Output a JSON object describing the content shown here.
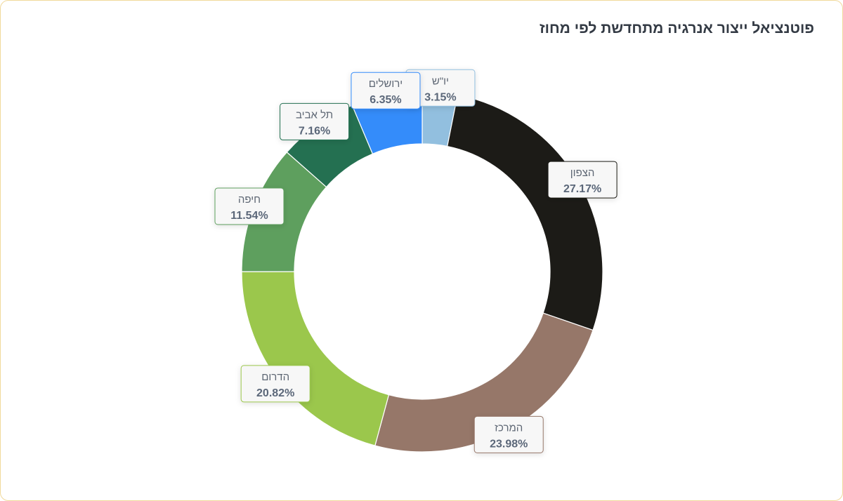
{
  "chart_data": {
    "type": "pie",
    "variant": "donut",
    "title": "פוטנציאל ייצור אנרגיה מתחדשת לפי מחוז",
    "legend": "none",
    "slices": [
      {
        "label": "יו\"ש",
        "value": 3.15,
        "value_label": "3.15%",
        "color": "#92bfdf"
      },
      {
        "label": "הצפון",
        "value": 27.17,
        "value_label": "27.17%",
        "color": "#1c1b17"
      },
      {
        "label": "המרכז",
        "value": 23.98,
        "value_label": "23.98%",
        "color": "#967769"
      },
      {
        "label": "הדרום",
        "value": 20.82,
        "value_label": "20.82%",
        "color": "#9bc74c"
      },
      {
        "label": "חיפה",
        "value": 11.54,
        "value_label": "11.54%",
        "color": "#5e9f5e"
      },
      {
        "label": "תל אביב",
        "value": 7.16,
        "value_label": "7.16%",
        "color": "#247051"
      },
      {
        "label": "ירושלים",
        "value": 6.35,
        "value_label": "6.35%",
        "color": "#348cfa"
      }
    ]
  }
}
